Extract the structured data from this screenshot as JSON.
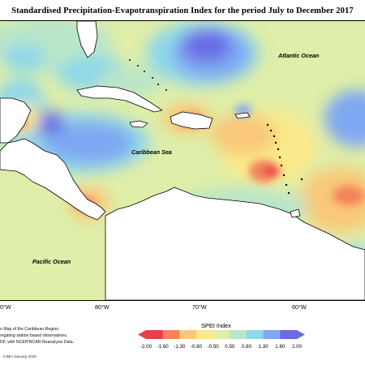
{
  "title": "Standardised Precipitation-Evapotranspiration Index for the period July to December 2017",
  "map": {
    "ocean_labels": {
      "atlantic": "Atlantic Ocean",
      "caribbean": "Caribbean Sea",
      "pacific": "Pacific Ocean"
    },
    "longitude_labels": [
      "0°W",
      "80°W",
      "70°W",
      "60°W"
    ],
    "palette": {
      "extremely_dry": "#e8404a",
      "very_dry": "#f4825a",
      "moderately_dry": "#f9c878",
      "slightly_dry": "#fbe98a",
      "near_normal": "#dfeea8",
      "slightly_wet": "#b9e6c8",
      "moderately_wet": "#8fd8ea",
      "very_wet": "#7fa8f2",
      "extremely_wet": "#6a6ae6",
      "land": "#ffffff",
      "coastline": "#000000"
    }
  },
  "caption": {
    "lines": [
      "n Map of the Caribbean Region.",
      "regating station based observations.",
      "DF, with NCEP/NCAR Reanalysis Data."
    ],
    "credit": "CIMH January 2018"
  },
  "legend": {
    "title": "SPEI Index",
    "ticks": [
      "-2.00",
      "-1.60",
      "-1.30",
      "-0.80",
      "-0.50",
      "0.50",
      "0.80",
      "1.30",
      "1.60",
      "2.00"
    ],
    "colors": [
      "#e8404a",
      "#f4825a",
      "#f9c878",
      "#fbe98a",
      "#dfeea8",
      "#b9e6c8",
      "#8fd8ea",
      "#7fa8f2",
      "#6a6ae6"
    ]
  }
}
